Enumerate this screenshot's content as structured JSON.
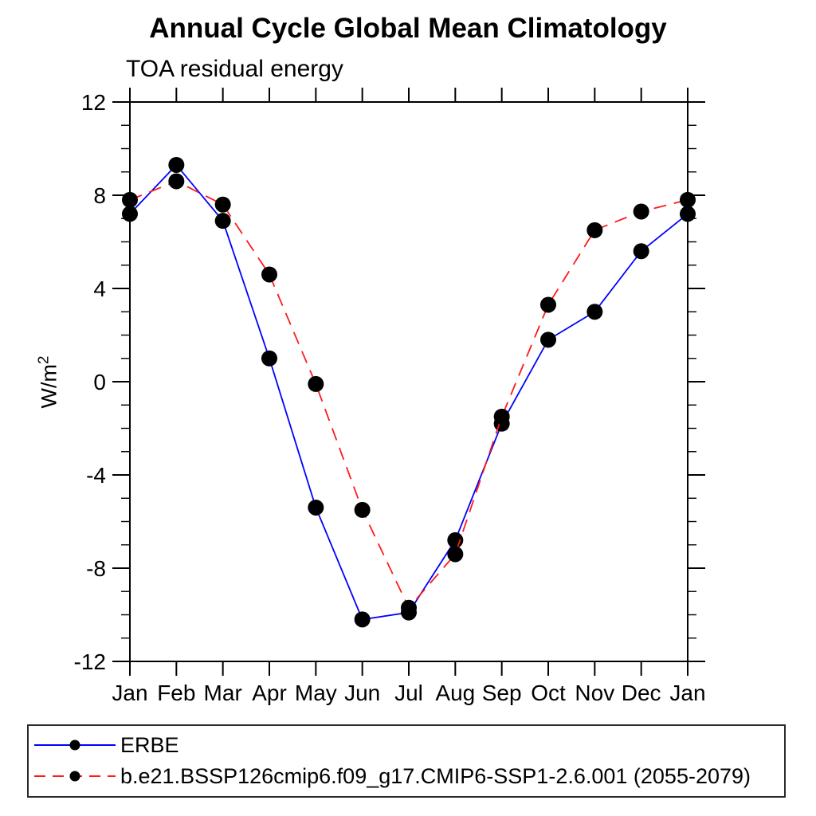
{
  "header": {
    "title": "Annual Cycle Global Mean Climatology",
    "subtitle": "TOA residual energy"
  },
  "y_axis": {
    "label_base": "W/m",
    "label_exponent": "2",
    "tick_labels": [
      "12",
      "8",
      "4",
      "0",
      "-4",
      "-8",
      "-12"
    ]
  },
  "chart_data": {
    "type": "line",
    "title": "Annual Cycle Global Mean Climatology",
    "subtitle": "TOA residual energy",
    "xlabel": "",
    "ylabel": "W/m2",
    "categories": [
      "Jan",
      "Feb",
      "Mar",
      "Apr",
      "May",
      "Jun",
      "Jul",
      "Aug",
      "Sep",
      "Oct",
      "Nov",
      "Dec",
      "Jan"
    ],
    "ylim": [
      -12,
      12
    ],
    "ytick_major_values": [
      12,
      8,
      4,
      0,
      -4,
      -8,
      -12
    ],
    "ytick_minor_step": 1,
    "grid": false,
    "legend_position": "bottom-left-box",
    "marker": "filled-circle",
    "marker_color": "#000000",
    "series": [
      {
        "name": "ERBE",
        "color": "#0000ff",
        "line_style": "solid",
        "values": [
          7.2,
          9.3,
          6.9,
          1.0,
          -5.4,
          -10.2,
          -9.9,
          -6.8,
          -1.8,
          1.8,
          3.0,
          5.6,
          7.2
        ]
      },
      {
        "name": "b.e21.BSSP126cmip6.f09_g17.CMIP6-SSP1-2.6.001 (2055-2079)",
        "color": "#ff1a1a",
        "line_style": "dashed",
        "values": [
          7.8,
          8.6,
          7.6,
          4.6,
          -0.1,
          -5.5,
          -9.7,
          -7.4,
          -1.5,
          3.3,
          6.5,
          7.3,
          7.8
        ]
      }
    ]
  }
}
